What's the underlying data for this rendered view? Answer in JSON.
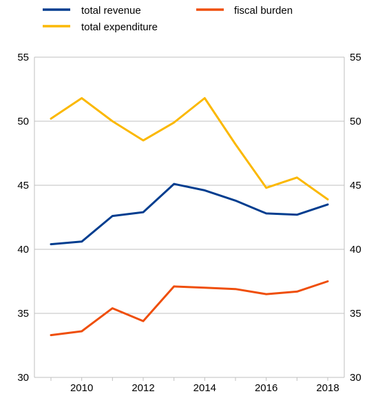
{
  "chart_data": {
    "type": "line",
    "x": [
      2009,
      2010,
      2011,
      2012,
      2013,
      2014,
      2015,
      2016,
      2017,
      2018
    ],
    "x_tick_labels": [
      "2010",
      "2012",
      "2014",
      "2016",
      "2018"
    ],
    "x_tick_values": [
      2010,
      2012,
      2014,
      2016,
      2018
    ],
    "ylim": [
      30,
      55
    ],
    "y_ticks": [
      30,
      35,
      40,
      45,
      50,
      55
    ],
    "y_tick_labels": [
      "30",
      "35",
      "40",
      "45",
      "50",
      "55"
    ],
    "secondary_y_ticks": [
      30,
      35,
      40,
      45,
      50,
      55
    ],
    "grid": "horizontal",
    "legend_position": "top",
    "series": [
      {
        "name": "total revenue",
        "color": "#003d8f",
        "values": [
          40.4,
          40.6,
          42.6,
          42.9,
          45.1,
          44.6,
          43.8,
          42.8,
          42.7,
          43.5
        ]
      },
      {
        "name": "total expenditure",
        "color": "#fbb800",
        "values": [
          50.2,
          51.8,
          50.0,
          48.5,
          49.9,
          51.8,
          48.2,
          44.8,
          45.6,
          43.9
        ]
      },
      {
        "name": "fiscal burden",
        "color": "#ef4e0a",
        "values": [
          33.3,
          33.6,
          35.4,
          34.4,
          37.1,
          37.0,
          36.9,
          36.5,
          36.7,
          37.5
        ]
      }
    ]
  }
}
